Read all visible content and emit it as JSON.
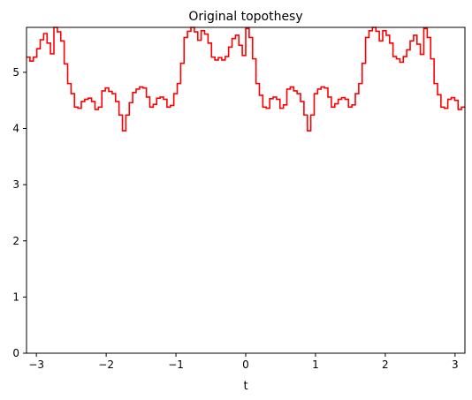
{
  "chart_data": {
    "type": "line",
    "title": "Original topothesy",
    "xlabel": "t",
    "ylabel": "",
    "xlim": [
      -3.1416,
      3.1416
    ],
    "ylim": [
      0,
      5.8
    ],
    "grid": false,
    "step": true,
    "xticks": [
      -3,
      -2,
      -1,
      0,
      1,
      2,
      3
    ],
    "xtick_labels": [
      "−3",
      "−2",
      "−1",
      "0",
      "1",
      "2",
      "3"
    ],
    "yticks": [
      0,
      1,
      2,
      3,
      4,
      5
    ],
    "ytick_labels": [
      "0",
      "1",
      "2",
      "3",
      "4",
      "5"
    ],
    "series": [
      {
        "color": "#ff0000",
        "x": [
          -3.1416,
          -3.0925,
          -3.0434,
          -2.9943,
          -2.9452,
          -2.8962,
          -2.8471,
          -2.798,
          -2.7489,
          -2.6998,
          -2.6507,
          -2.6016,
          -2.5525,
          -2.5034,
          -2.4544,
          -2.4053,
          -2.3562,
          -2.3071,
          -2.258,
          -2.2089,
          -2.1598,
          -2.1107,
          -2.0617,
          -2.0126,
          -1.9635,
          -1.9144,
          -1.8653,
          -1.8162,
          -1.7671,
          -1.718,
          -1.6689,
          -1.6199,
          -1.5708,
          -1.5217,
          -1.4726,
          -1.4235,
          -1.3744,
          -1.3253,
          -1.2762,
          -1.2272,
          -1.1781,
          -1.129,
          -1.0799,
          -1.0308,
          -0.9817,
          -0.9326,
          -0.8835,
          -0.8345,
          -0.7854,
          -0.7363,
          -0.6872,
          -0.6381,
          -0.589,
          -0.5399,
          -0.4909,
          -0.4418,
          -0.3927,
          -0.3436,
          -0.2945,
          -0.2454,
          -0.1963,
          -0.1473,
          -0.0982,
          -0.0491,
          0,
          0.0491,
          0.0982,
          0.1473,
          0.1963,
          0.2454,
          0.2945,
          0.3436,
          0.3927,
          0.4418,
          0.4909,
          0.5399,
          0.589,
          0.6381,
          0.6872,
          0.7363,
          0.7854,
          0.8345,
          0.8835,
          0.9326,
          0.9817,
          1.0308,
          1.0799,
          1.129,
          1.1781,
          1.2272,
          1.2762,
          1.3253,
          1.3744,
          1.4235,
          1.4726,
          1.5217,
          1.5708,
          1.6199,
          1.6689,
          1.718,
          1.7671,
          1.8162,
          1.8653,
          1.9144,
          1.9635,
          2.0126,
          2.0617,
          2.1107,
          2.1598,
          2.2089,
          2.258,
          2.3071,
          2.3562,
          2.4053,
          2.4544,
          2.5034,
          2.5525,
          2.6016,
          2.6507,
          2.6998,
          2.7489,
          2.798,
          2.8471,
          2.8962,
          2.9452,
          2.9943,
          3.0434,
          3.0925
        ],
        "values": [
          5.27,
          5.2,
          5.27,
          5.42,
          5.58,
          5.69,
          5.52,
          5.33,
          5.8,
          5.72,
          5.56,
          5.15,
          4.8,
          4.62,
          4.38,
          4.36,
          4.48,
          4.52,
          4.54,
          4.48,
          4.34,
          4.38,
          4.67,
          4.72,
          4.66,
          4.62,
          4.48,
          4.24,
          3.96,
          4.24,
          4.46,
          4.64,
          4.7,
          4.74,
          4.72,
          4.56,
          4.38,
          4.43,
          4.54,
          4.56,
          4.52,
          4.38,
          4.41,
          4.62,
          4.8,
          5.16,
          5.62,
          5.73,
          5.83,
          5.72,
          5.57,
          5.74,
          5.68,
          5.52,
          5.27,
          5.22,
          5.26,
          5.22,
          5.28,
          5.45,
          5.6,
          5.66,
          5.48,
          5.3,
          5.78,
          5.62,
          5.24,
          4.8,
          4.59,
          4.38,
          4.36,
          4.53,
          4.56,
          4.52,
          4.36,
          4.42,
          4.7,
          4.74,
          4.67,
          4.62,
          4.48,
          4.24,
          3.96,
          4.24,
          4.62,
          4.7,
          4.74,
          4.72,
          4.56,
          4.38,
          4.44,
          4.52,
          4.55,
          4.52,
          4.38,
          4.42,
          4.62,
          4.8,
          5.16,
          5.62,
          5.74,
          5.82,
          5.73,
          5.56,
          5.74,
          5.66,
          5.52,
          5.28,
          5.24,
          5.18,
          5.28,
          5.4,
          5.56,
          5.66,
          5.5,
          5.32,
          5.78,
          5.62,
          5.24,
          4.8,
          4.6,
          4.38,
          4.36,
          4.52,
          4.55,
          4.5,
          4.34,
          4.38
        ]
      }
    ]
  }
}
